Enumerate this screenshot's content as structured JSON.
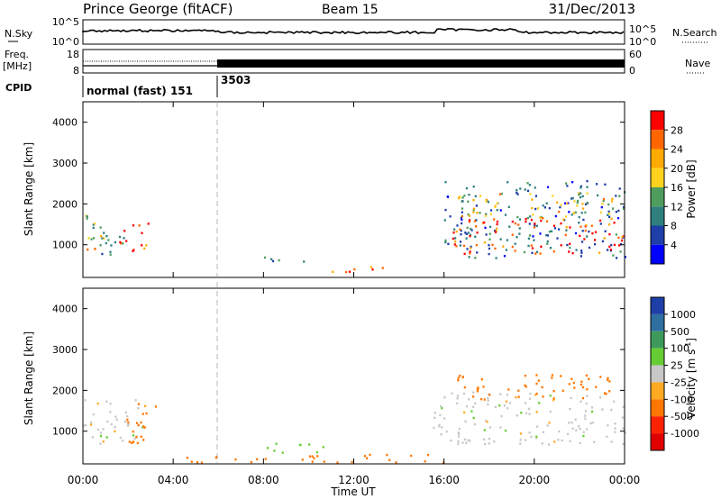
{
  "header": {
    "station": "Prince George (fitACF)",
    "beam": "Beam 15",
    "date": "31/Dec/2013"
  },
  "top_panels": {
    "nsky_label": "N.Sky",
    "nsky_ticks": [
      "10^5",
      "10^0"
    ],
    "nsearch_label": "N.Search",
    "nsearch_ticks": [
      "10^5",
      "10^0"
    ],
    "freq_label_1": "Freq.",
    "freq_label_2": "[MHz]",
    "freq_ticks": [
      "18",
      "8"
    ],
    "nave_label": "Nave",
    "nave_ticks": [
      "60",
      "0"
    ],
    "cpid_label": "CPID",
    "cpid_modes": [
      "normal (fast) 151",
      "3503"
    ]
  },
  "chart_data": [
    {
      "type": "heatmap",
      "name": "power",
      "ylabel": "Slant Range [km]",
      "xlabel": "Time UT",
      "xlim": [
        0,
        24
      ],
      "ylim": [
        200,
        4500
      ],
      "y_ticks": [
        "1000",
        "2000",
        "3000",
        "4000"
      ],
      "x_ticks": [
        "00:00",
        "04:00",
        "08:00",
        "12:00",
        "16:00",
        "20:00",
        "00:00"
      ],
      "colorbar": {
        "label": "Power [dB]",
        "ticks": [
          "28",
          "24",
          "20",
          "16",
          "12",
          "8",
          "4"
        ],
        "colors": [
          "#ff0000",
          "#ff6600",
          "#ffaa00",
          "#ffd21e",
          "#4f9d5c",
          "#2f7f7f",
          "#1e3ea8",
          "#0000ff"
        ]
      },
      "regions": [
        {
          "t0": 0.0,
          "t1": 1.8,
          "r0": 700,
          "r1": 1800,
          "level": 12
        },
        {
          "t0": 1.6,
          "t1": 2.9,
          "r0": 800,
          "r1": 1600,
          "level": 26
        },
        {
          "t0": 0.1,
          "t1": 0.9,
          "r0": 900,
          "r1": 1300,
          "level": 24
        },
        {
          "t0": 8.0,
          "t1": 10.8,
          "r0": 600,
          "r1": 750,
          "level": 12
        },
        {
          "t0": 10.8,
          "t1": 13.5,
          "r0": 350,
          "r1": 550,
          "level": 24
        },
        {
          "t0": 16.0,
          "t1": 24.0,
          "r0": 700,
          "r1": 2600,
          "level": 8
        },
        {
          "t0": 16.3,
          "t1": 24.0,
          "r0": 800,
          "r1": 1700,
          "level": 26
        },
        {
          "t0": 16.5,
          "t1": 23.5,
          "r0": 1700,
          "r1": 2300,
          "level": 18
        }
      ]
    },
    {
      "type": "heatmap",
      "name": "velocity",
      "ylabel": "Slant Range [km]",
      "xlabel": "Time UT",
      "xlim": [
        0,
        24
      ],
      "ylim": [
        200,
        4500
      ],
      "y_ticks": [
        "1000",
        "2000",
        "3000",
        "4000"
      ],
      "x_ticks": [
        "00:00",
        "04:00",
        "08:00",
        "12:00",
        "16:00",
        "20:00",
        "00:00"
      ],
      "colorbar": {
        "label": "Velocity [m s^-1]",
        "ticks": [
          "1000",
          "500",
          "100",
          "25",
          "-25",
          "-100",
          "-500",
          "-1000"
        ],
        "colors": [
          "#1f3fa8",
          "#2e6fa0",
          "#3e9a5a",
          "#66cc33",
          "#c8c8c8",
          "#ffaa22",
          "#ff7700",
          "#ff2200",
          "#e00000"
        ]
      },
      "regions": [
        {
          "t0": 0.0,
          "t1": 2.8,
          "r0": 700,
          "r1": 1800,
          "level": 0
        },
        {
          "t0": 1.8,
          "t1": 3.2,
          "r0": 600,
          "r1": 1700,
          "level": -150
        },
        {
          "t0": 4.5,
          "t1": 16.0,
          "r0": 250,
          "r1": 450,
          "level": -150
        },
        {
          "t0": 8.0,
          "t1": 11.0,
          "r0": 500,
          "r1": 750,
          "level": 60
        },
        {
          "t0": 15.5,
          "t1": 24.0,
          "r0": 700,
          "r1": 2000,
          "level": 0
        },
        {
          "t0": 16.5,
          "t1": 23.5,
          "r0": 1800,
          "r1": 2400,
          "level": -300
        }
      ]
    }
  ],
  "reference_line_time": "06:00"
}
